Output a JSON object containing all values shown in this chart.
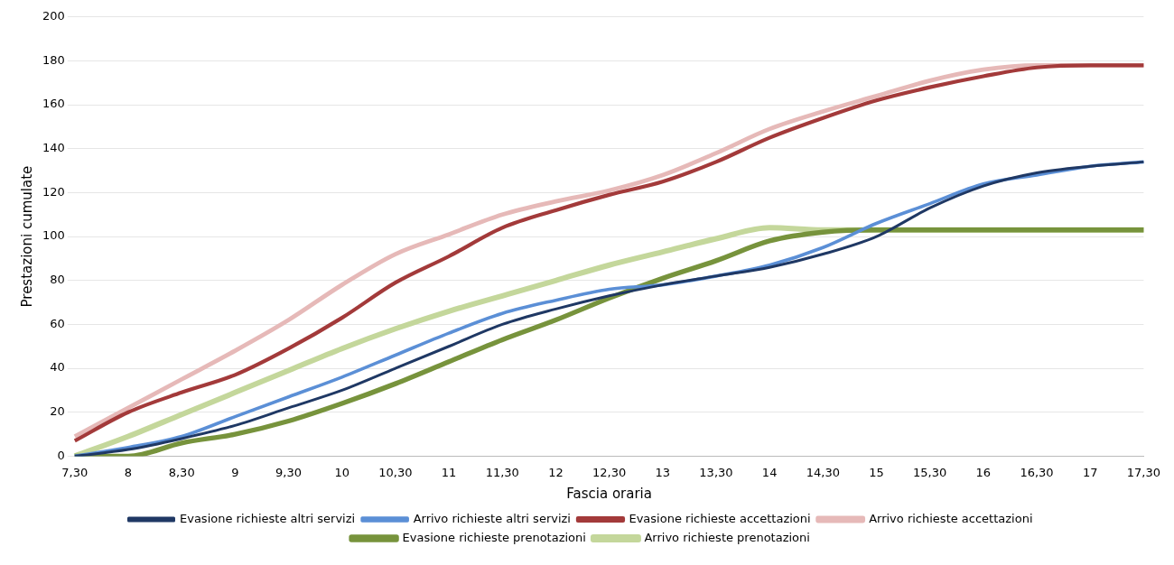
{
  "chart_data": {
    "type": "line",
    "xlabel": "Fascia oraria",
    "ylabel": "Prestazioni cumulate",
    "categories": [
      "7,30",
      "8",
      "8,30",
      "9",
      "9,30",
      "10",
      "10,30",
      "11",
      "11,30",
      "12",
      "12,30",
      "13",
      "13,30",
      "14",
      "14,30",
      "15",
      "15,30",
      "16",
      "16,30",
      "17",
      "17,30"
    ],
    "ylim": [
      0,
      200
    ],
    "yticks": [
      0,
      20,
      40,
      60,
      80,
      100,
      120,
      140,
      160,
      180,
      200
    ],
    "grid": "y",
    "legend": "bottom",
    "marker": "none",
    "line_style": "solid",
    "series": [
      {
        "name": "Arrivo richieste prenotazioni",
        "color": "#c4d79b",
        "values": [
          0,
          9,
          19,
          29,
          39,
          49,
          58,
          66,
          73,
          80,
          87,
          93,
          99,
          104,
          103,
          103,
          103,
          103,
          103,
          103,
          103
        ]
      },
      {
        "name": "Evasione richieste prenotazioni",
        "color": "#77933c",
        "values": [
          0,
          0,
          6,
          10,
          16,
          24,
          33,
          43,
          53,
          62,
          72,
          81,
          89,
          98,
          102,
          103,
          103,
          103,
          103,
          103,
          103
        ]
      },
      {
        "name": "Arrivo richieste accettazioni",
        "color": "#e6b9b8",
        "values": [
          9,
          22,
          35,
          48,
          62,
          78,
          92,
          101,
          110,
          116,
          121,
          128,
          138,
          149,
          157,
          164,
          171,
          176,
          178,
          178,
          178
        ]
      },
      {
        "name": "Evasione richieste accettazioni",
        "color": "#a33a3a",
        "values": [
          7,
          20,
          29,
          37,
          49,
          63,
          79,
          91,
          104,
          112,
          119,
          125,
          134,
          145,
          154,
          162,
          168,
          173,
          177,
          178,
          178
        ]
      },
      {
        "name": "Arrivo richieste altri servizi",
        "color": "#5b8fd6",
        "values": [
          0,
          4,
          9,
          18,
          27,
          36,
          46,
          56,
          65,
          71,
          76,
          78,
          82,
          87,
          95,
          106,
          115,
          124,
          128,
          132,
          134
        ]
      },
      {
        "name": "Evasione richieste altri servizi",
        "color": "#1f3864",
        "values": [
          0,
          3,
          8,
          14,
          22,
          30,
          40,
          50,
          60,
          67,
          73,
          78,
          82,
          86,
          92,
          100,
          113,
          123,
          129,
          132,
          134
        ]
      }
    ]
  }
}
